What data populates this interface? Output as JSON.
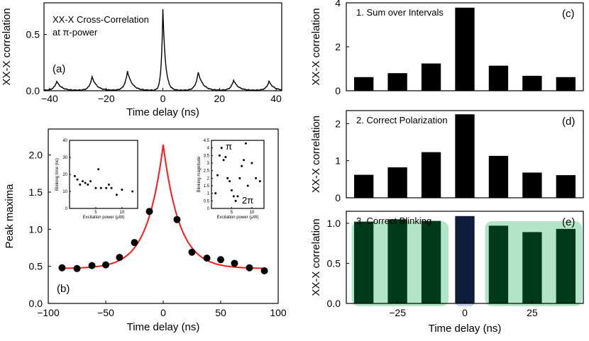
{
  "colors": {
    "fit": "#ff1a1a",
    "bar": "#000000",
    "bar_e": "#003a1c",
    "bar_e_center": "#0f1d3c",
    "green_box": "#b3e6c8",
    "blue_box": "#c4cfe9"
  },
  "chart_data": [
    {
      "id": "a",
      "type": "line",
      "panel_label": "(a)",
      "title_lines": [
        "XX-X Cross-Correlation",
        "at π-power"
      ],
      "xlabel": "Time delay (ns)",
      "ylabel": "XX-X correlation",
      "xlim": [
        -42,
        42
      ],
      "ylim": [
        0,
        0.78
      ],
      "xticks": [
        -40,
        -20,
        0,
        20,
        40
      ],
      "xtick_labels": [
        "−40",
        "−20",
        "0",
        "20",
        "40"
      ],
      "yticks": [
        0,
        0.5
      ],
      "ytick_labels": [
        "0.0",
        "0.5"
      ],
      "peaks": [
        {
          "x": -37.5,
          "height": 0.08
        },
        {
          "x": -25,
          "height": 0.12
        },
        {
          "x": -12.5,
          "height": 0.17
        },
        {
          "x": 0,
          "height": 0.72
        },
        {
          "x": 12.5,
          "height": 0.16
        },
        {
          "x": 25,
          "height": 0.09
        },
        {
          "x": 37.5,
          "height": 0.08
        }
      ],
      "baseline": 0.0
    },
    {
      "id": "b",
      "type": "scatter",
      "panel_label": "(b)",
      "xlabel": "Time delay (ns)",
      "ylabel": "Peak maxima",
      "xlim": [
        -100,
        100
      ],
      "ylim": [
        0,
        2.35
      ],
      "xticks": [
        -100,
        -50,
        0,
        50,
        100
      ],
      "xtick_labels": [
        "−100",
        "−50",
        "0",
        "50",
        "100"
      ],
      "yticks": [
        0,
        0.5,
        1.0,
        1.5,
        2.0
      ],
      "ytick_labels": [
        "0.0",
        "0.5",
        "1.0",
        "1.5",
        "2.0"
      ],
      "points": {
        "x": [
          -88,
          -75,
          -62,
          -50,
          -38,
          -25,
          -12,
          12,
          25,
          38,
          50,
          62,
          75,
          88
        ],
        "y": [
          0.48,
          0.47,
          0.51,
          0.52,
          0.62,
          0.82,
          1.24,
          1.13,
          0.69,
          0.61,
          0.59,
          0.54,
          0.48,
          0.44
        ]
      },
      "fit": {
        "baseline": 0.47,
        "amplitude": 1.67,
        "width": 14,
        "color": "#ff1a1a"
      },
      "insets": [
        {
          "id": "b-inset-left",
          "xlabel": "Excitation power (μW)",
          "ylabel": "Blinking time (ns)",
          "xlim": [
            0,
            13
          ],
          "ylim": [
            0,
            40
          ],
          "xticks": [
            5,
            10
          ],
          "xtick_labels": [
            "5",
            "10"
          ],
          "yticks": [
            0,
            10,
            20,
            30,
            40
          ],
          "ytick_labels": [
            "0",
            "10",
            "20",
            "30",
            "40"
          ],
          "points": {
            "x": [
              1,
              1.5,
              2,
              2.5,
              3,
              3.5,
              4,
              5,
              5.5,
              6,
              7,
              7.5,
              8,
              9,
              10,
              12
            ],
            "y": [
              19,
              17,
              14,
              16,
              15,
              14,
              16,
              12,
              23,
              12,
              12,
              14,
              12,
              8,
              11,
              10
            ]
          }
        },
        {
          "id": "b-inset-right",
          "xlabel": "Excitation power (μW)",
          "ylabel": "Blinking magnitude",
          "xlim": [
            0,
            13
          ],
          "ylim": [
            0,
            4.5
          ],
          "xticks": [
            5,
            10
          ],
          "xtick_labels": [
            "5",
            "10"
          ],
          "yticks": [
            0,
            0.5,
            1,
            1.5,
            2,
            2.5,
            3,
            3.5,
            4,
            4.5
          ],
          "ytick_labels": [
            "0",
            "0.5",
            "1",
            "1.5",
            "2",
            "2.5",
            "3",
            "3.5",
            "4",
            "4.5"
          ],
          "annotations": [
            "π",
            "2π"
          ],
          "points": {
            "x": [
              1,
              1.5,
              2,
              2.5,
              3,
              3.5,
              4,
              4.5,
              5,
              5.5,
              6,
              6.5,
              7,
              7.5,
              8,
              8.5,
              9,
              10,
              11,
              12
            ],
            "y": [
              1.0,
              2.2,
              3.5,
              4.0,
              3.2,
              3.4,
              2.0,
              1.8,
              1.2,
              0.8,
              0.5,
              0.8,
              2.0,
              2.8,
              3.2,
              4.3,
              1.5,
              3.0,
              2.0,
              1.8
            ]
          }
        }
      ]
    },
    {
      "id": "c",
      "type": "bar",
      "panel_label": "(c)",
      "note": "1. Sum over Intervals",
      "xlabel": "",
      "ylabel": "XX-X correlation",
      "xlim": [
        -44,
        44
      ],
      "ylim": [
        0,
        4
      ],
      "yticks": [
        0,
        2,
        4
      ],
      "ytick_labels": [
        "0",
        "2",
        "4"
      ],
      "x": [
        -37.5,
        -25,
        -12.5,
        0,
        12.5,
        25,
        37.5
      ],
      "values": [
        0.62,
        0.8,
        1.24,
        3.78,
        1.14,
        0.68,
        0.62
      ]
    },
    {
      "id": "d",
      "type": "bar",
      "panel_label": "(d)",
      "note": "2. Correct Polarization",
      "xlabel": "",
      "ylabel": "XX-X correlation",
      "xlim": [
        -44,
        44
      ],
      "ylim": [
        0,
        2.35
      ],
      "yticks": [
        0,
        1,
        2
      ],
      "ytick_labels": [
        "0",
        "1",
        "2"
      ],
      "x": [
        -37.5,
        -25,
        -12.5,
        0,
        12.5,
        25,
        37.5
      ],
      "values": [
        0.62,
        0.82,
        1.23,
        2.25,
        1.13,
        0.68,
        0.61
      ]
    },
    {
      "id": "e",
      "type": "bar",
      "panel_label": "(e)",
      "note": "3. Correct Blinking",
      "xlabel": "Time delay (ns)",
      "ylabel": "XX-X correlation",
      "xlim": [
        -44,
        44
      ],
      "ylim": [
        0,
        1.15
      ],
      "xticks": [
        -25,
        0,
        25
      ],
      "xtick_labels": [
        "−25",
        "0",
        "25"
      ],
      "yticks": [
        0,
        0.5,
        1.0
      ],
      "ytick_labels": [
        "0.0",
        "0.5",
        "1.0"
      ],
      "x": [
        -37.5,
        -25,
        -12.5,
        0,
        12.5,
        25,
        37.5
      ],
      "values": [
        1.02,
        1.05,
        1.03,
        1.09,
        0.97,
        0.89,
        0.93
      ]
    }
  ]
}
